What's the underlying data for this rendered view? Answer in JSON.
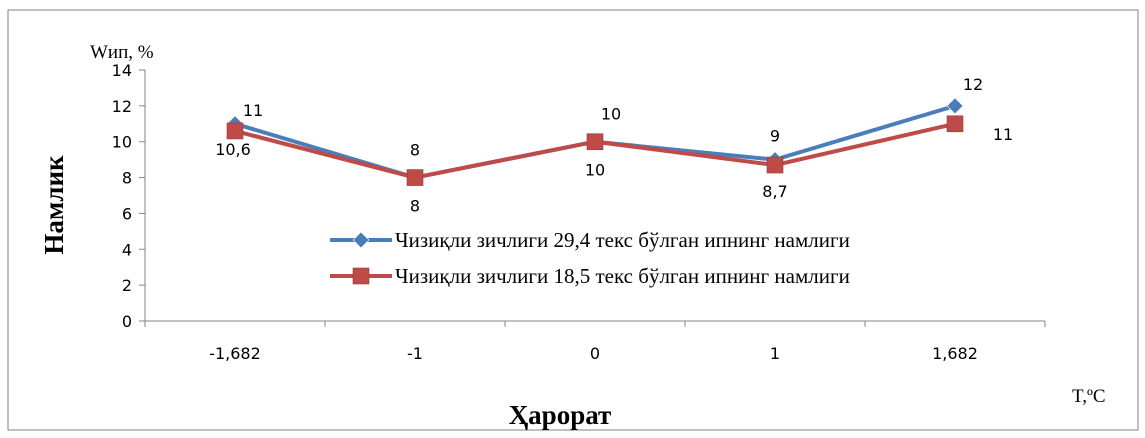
{
  "chart_data": {
    "type": "line",
    "title": "",
    "xlabel": "Ҳарорат",
    "ylabel": "Намлик",
    "y_unit_label": "Wип, %",
    "x_unit_label": "T,ºC",
    "categories": [
      "-1,682",
      "-1",
      "0",
      "1",
      "1,682"
    ],
    "ylim": [
      0,
      14
    ],
    "yticks": [
      0,
      2,
      4,
      6,
      8,
      10,
      12,
      14
    ],
    "grid": false,
    "legend_position": "right-middle",
    "series": [
      {
        "name": "Чизиқли зичлиги 29,4 текс бўлган ипнинг намлиги",
        "values": [
          11,
          8,
          10,
          9,
          12
        ],
        "data_labels": [
          "11",
          "8",
          "10",
          "9",
          "12"
        ],
        "color": "#4A7EBB",
        "marker": "diamond"
      },
      {
        "name": "Чизиқли зичлиги 18,5 текс бўлган ипнинг намлиги",
        "values": [
          10.6,
          8,
          10,
          8.7,
          11
        ],
        "data_labels": [
          "10,6",
          "8",
          "10",
          "8,7",
          "11"
        ],
        "color": "#BE4B48",
        "marker": "square"
      }
    ]
  }
}
